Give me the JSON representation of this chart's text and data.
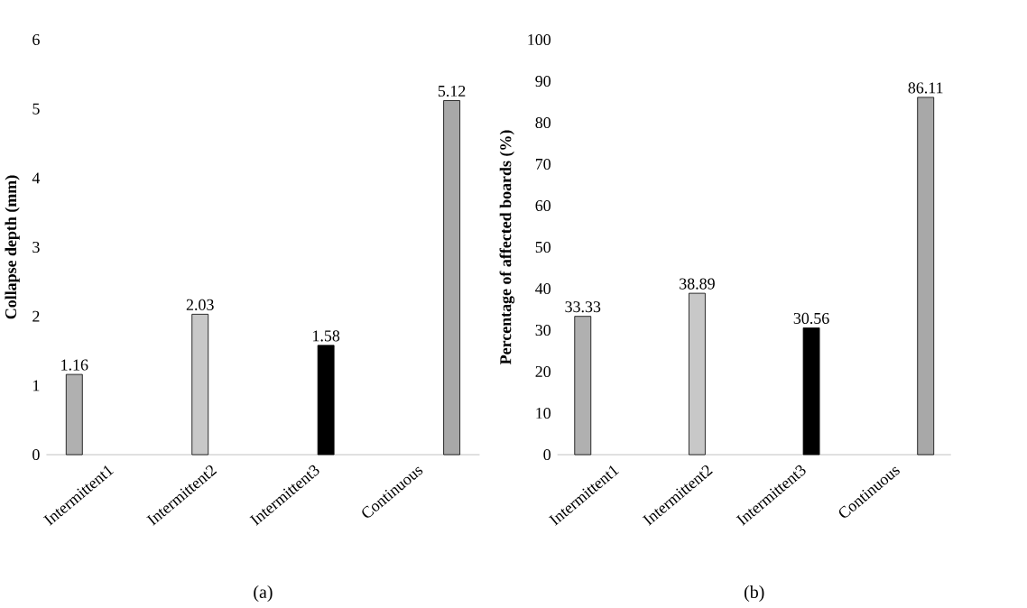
{
  "chart_data": [
    {
      "type": "bar",
      "categories": [
        "Intermittent1",
        "Intermittent2",
        "Intermittent3",
        "Continuous"
      ],
      "ylabel": "Collapse depth (mm)",
      "ylim": [
        0,
        6
      ],
      "yticks": [
        0,
        1,
        2,
        3,
        4,
        5,
        6
      ],
      "data_labels": true,
      "annotations": [
        "(a)"
      ],
      "series": [
        {
          "color": "#b0b0b0",
          "values": [
            1.16,
            null,
            null,
            null
          ]
        },
        {
          "color": "#c8c8c8",
          "values": [
            null,
            2.03,
            null,
            null
          ]
        },
        {
          "color": "#000000",
          "values": [
            null,
            null,
            1.58,
            null
          ]
        },
        {
          "color": "#a8a8a8",
          "values": [
            null,
            null,
            null,
            5.12
          ]
        }
      ]
    },
    {
      "type": "bar",
      "categories": [
        "Intermittent1",
        "Intermittent2",
        "Intermittent3",
        "Continuous"
      ],
      "ylabel": "Percentage of affected boards (%)",
      "ylim": [
        0,
        100
      ],
      "yticks": [
        0,
        10,
        20,
        30,
        40,
        50,
        60,
        70,
        80,
        90,
        100
      ],
      "data_labels": true,
      "annotations": [
        "(b)"
      ],
      "series": [
        {
          "color": "#b0b0b0",
          "values": [
            33.33,
            null,
            null,
            null
          ]
        },
        {
          "color": "#c8c8c8",
          "values": [
            null,
            38.89,
            null,
            null
          ]
        },
        {
          "color": "#000000",
          "values": [
            null,
            null,
            30.56,
            null
          ]
        },
        {
          "color": "#a8a8a8",
          "values": [
            null,
            null,
            null,
            86.11
          ]
        }
      ]
    }
  ]
}
